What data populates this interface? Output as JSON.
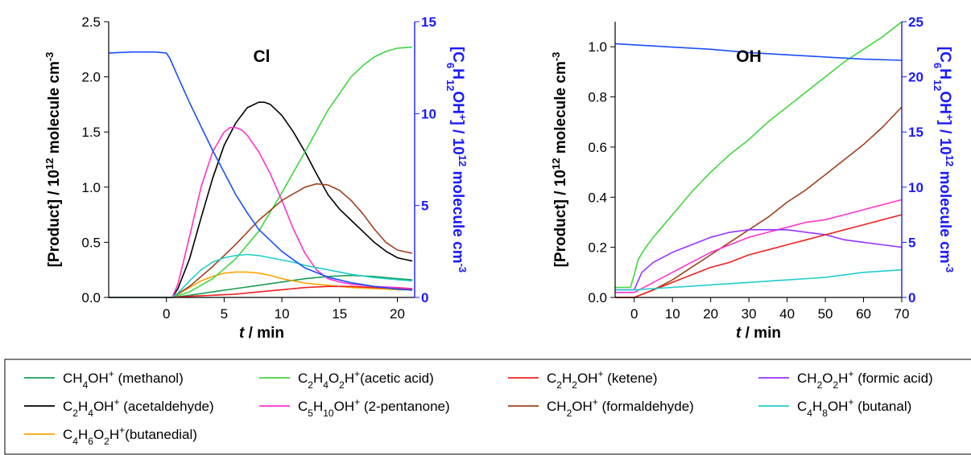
{
  "chart_data": [
    {
      "type": "line",
      "title": "Cl",
      "xlabel": "t / min",
      "ylabel": "[Product] / 10^12 molecule cm^-3",
      "y2label": "[C6H12OH+] / 10^12 molecule cm^-3",
      "xlim": [
        -5,
        21.5
      ],
      "ylim": [
        0,
        2.5
      ],
      "y2lim": [
        0,
        15
      ],
      "x_ticks": [
        "0",
        "5",
        "10",
        "15",
        "20"
      ],
      "y_ticks": [
        "0.0",
        "0.5",
        "1.0",
        "1.5",
        "2.0",
        "2.5"
      ],
      "y2_ticks": [
        "0",
        "5",
        "10",
        "15"
      ],
      "grid": false,
      "series": [
        {
          "key": "methanol",
          "axis": "left",
          "x": [
            -5,
            0,
            0.5,
            2,
            4,
            6,
            8,
            10,
            12,
            14,
            16,
            18,
            20,
            21.3
          ],
          "y": [
            0,
            0,
            0,
            0.02,
            0.05,
            0.08,
            0.11,
            0.14,
            0.17,
            0.19,
            0.2,
            0.19,
            0.17,
            0.16
          ]
        },
        {
          "key": "acetaldehyde",
          "axis": "left",
          "x": [
            -5,
            0,
            0.5,
            1,
            2,
            3,
            4,
            5,
            6,
            7,
            8,
            8.5,
            9,
            10,
            11,
            12,
            13,
            14,
            15,
            16,
            17,
            18,
            19,
            20,
            21.3
          ],
          "y": [
            0,
            0,
            0,
            0.08,
            0.35,
            0.72,
            1.08,
            1.38,
            1.58,
            1.72,
            1.77,
            1.77,
            1.75,
            1.65,
            1.5,
            1.32,
            1.12,
            0.93,
            0.8,
            0.7,
            0.6,
            0.5,
            0.42,
            0.36,
            0.33
          ]
        },
        {
          "key": "butanedial",
          "axis": "left",
          "x": [
            -5,
            0,
            0.5,
            1,
            2,
            3,
            4,
            5,
            6,
            7,
            8,
            9,
            10,
            11,
            12,
            14,
            16,
            18,
            20,
            21.3
          ],
          "y": [
            0,
            0,
            0,
            0.03,
            0.09,
            0.15,
            0.19,
            0.22,
            0.23,
            0.23,
            0.22,
            0.2,
            0.17,
            0.15,
            0.13,
            0.11,
            0.09,
            0.08,
            0.07,
            0.07
          ]
        },
        {
          "key": "acetic_acid",
          "axis": "left",
          "x": [
            -5,
            0,
            0.5,
            2,
            4,
            6,
            8,
            10,
            12,
            14,
            16,
            17,
            18,
            19,
            20,
            21.3
          ],
          "y": [
            0,
            0,
            0,
            0.05,
            0.17,
            0.35,
            0.6,
            0.95,
            1.32,
            1.7,
            2.0,
            2.1,
            2.18,
            2.23,
            2.26,
            2.27
          ]
        },
        {
          "key": "2_pentanone",
          "axis": "left",
          "x": [
            -5,
            0,
            0.5,
            1,
            2,
            3,
            4,
            5,
            5.5,
            6,
            6.5,
            7,
            8,
            9,
            10,
            11,
            12,
            13,
            14,
            15,
            16,
            18,
            20,
            21.3
          ],
          "y": [
            0,
            0,
            0,
            0.12,
            0.55,
            1.0,
            1.32,
            1.5,
            1.54,
            1.54,
            1.52,
            1.47,
            1.32,
            1.12,
            0.88,
            0.62,
            0.4,
            0.25,
            0.17,
            0.14,
            0.12,
            0.1,
            0.09,
            0.08
          ]
        },
        {
          "key": "ketene",
          "axis": "left",
          "x": [
            -5,
            0,
            0.5,
            2,
            4,
            6,
            8,
            10,
            12,
            14,
            16,
            18,
            20,
            21.3
          ],
          "y": [
            0,
            0,
            0,
            0.01,
            0.02,
            0.03,
            0.05,
            0.07,
            0.09,
            0.1,
            0.1,
            0.09,
            0.08,
            0.07
          ]
        },
        {
          "key": "formaldehyde",
          "axis": "left",
          "x": [
            -5,
            0,
            0.5,
            2,
            4,
            6,
            8,
            10,
            12,
            13,
            14,
            15,
            16,
            17,
            18,
            19,
            20,
            21.3
          ],
          "y": [
            0,
            0,
            0,
            0.1,
            0.28,
            0.48,
            0.7,
            0.88,
            1.0,
            1.03,
            1.02,
            0.97,
            0.88,
            0.76,
            0.62,
            0.5,
            0.43,
            0.4
          ]
        },
        {
          "key": "butanal",
          "axis": "left",
          "x": [
            -5,
            0,
            0.5,
            1,
            2,
            3,
            4,
            5,
            6,
            7,
            8,
            9,
            10,
            11,
            12,
            14,
            16,
            18,
            20,
            21.3
          ],
          "y": [
            0,
            0,
            0,
            0.04,
            0.15,
            0.25,
            0.32,
            0.36,
            0.38,
            0.39,
            0.38,
            0.36,
            0.34,
            0.32,
            0.29,
            0.25,
            0.21,
            0.18,
            0.16,
            0.15
          ]
        },
        {
          "key": "hexanol_ion",
          "axis": "right",
          "x": [
            -5,
            -3,
            -1,
            0,
            0.3,
            1,
            2,
            3,
            4,
            5,
            6,
            7,
            8,
            10,
            12,
            14,
            16,
            18,
            20,
            21.3
          ],
          "y": [
            13.3,
            13.35,
            13.35,
            13.3,
            13.0,
            12.0,
            10.6,
            9.3,
            8.0,
            6.8,
            5.6,
            4.6,
            3.7,
            2.5,
            1.6,
            1.1,
            0.8,
            0.6,
            0.45,
            0.4
          ]
        }
      ]
    },
    {
      "type": "line",
      "title": "OH",
      "xlabel": "t / min",
      "ylabel": "[Product] / 10^12 molecule cm^-3",
      "y2label": "[C6H12OH+] / 10^12 molecule cm^-3",
      "xlim": [
        -5,
        70
      ],
      "ylim": [
        0,
        1.1
      ],
      "y2lim": [
        0,
        25
      ],
      "x_ticks": [
        "0",
        "10",
        "20",
        "30",
        "40",
        "50",
        "60",
        "70"
      ],
      "y_ticks": [
        "0.0",
        "0.2",
        "0.4",
        "0.6",
        "0.8",
        "1.0"
      ],
      "y2_ticks": [
        "0",
        "5",
        "10",
        "15",
        "20",
        "25"
      ],
      "grid": false,
      "series": [
        {
          "key": "acetic_acid",
          "axis": "left",
          "x": [
            -5,
            -1,
            0,
            1,
            3,
            5,
            10,
            15,
            20,
            25,
            30,
            35,
            40,
            45,
            50,
            55,
            60,
            65,
            70
          ],
          "y": [
            0.04,
            0.04,
            0.09,
            0.15,
            0.2,
            0.24,
            0.33,
            0.42,
            0.5,
            0.57,
            0.63,
            0.7,
            0.76,
            0.82,
            0.88,
            0.94,
            0.99,
            1.04,
            1.1
          ]
        },
        {
          "key": "formaldehyde",
          "axis": "left",
          "x": [
            -5,
            0,
            5,
            10,
            15,
            20,
            25,
            30,
            35,
            40,
            45,
            50,
            55,
            60,
            65,
            70
          ],
          "y": [
            0.0,
            0.0,
            0.03,
            0.07,
            0.12,
            0.17,
            0.22,
            0.27,
            0.32,
            0.38,
            0.43,
            0.49,
            0.55,
            0.61,
            0.68,
            0.76
          ]
        },
        {
          "key": "2_pentanone",
          "axis": "left",
          "x": [
            -5,
            0,
            5,
            10,
            15,
            20,
            25,
            30,
            35,
            40,
            45,
            50,
            55,
            60,
            65,
            70
          ],
          "y": [
            0.02,
            0.02,
            0.06,
            0.1,
            0.14,
            0.18,
            0.21,
            0.24,
            0.26,
            0.28,
            0.3,
            0.31,
            0.33,
            0.35,
            0.37,
            0.39
          ]
        },
        {
          "key": "formic_acid",
          "axis": "left",
          "x": [
            -5,
            0,
            2,
            5,
            10,
            15,
            20,
            25,
            30,
            35,
            40,
            45,
            50,
            55,
            60,
            65,
            70
          ],
          "y": [
            0.03,
            0.03,
            0.1,
            0.14,
            0.18,
            0.21,
            0.24,
            0.26,
            0.27,
            0.27,
            0.27,
            0.26,
            0.25,
            0.23,
            0.22,
            0.21,
            0.2
          ]
        },
        {
          "key": "ketene",
          "axis": "left",
          "x": [
            -5,
            0,
            5,
            10,
            15,
            20,
            25,
            30,
            35,
            40,
            45,
            50,
            55,
            60,
            65,
            70
          ],
          "y": [
            0.0,
            0.0,
            0.03,
            0.06,
            0.09,
            0.12,
            0.14,
            0.17,
            0.19,
            0.21,
            0.23,
            0.25,
            0.27,
            0.29,
            0.31,
            0.33
          ]
        },
        {
          "key": "butanal",
          "axis": "left",
          "x": [
            -5,
            0,
            10,
            20,
            30,
            40,
            50,
            60,
            70
          ],
          "y": [
            0.03,
            0.03,
            0.04,
            0.05,
            0.06,
            0.07,
            0.08,
            0.1,
            0.11
          ]
        },
        {
          "key": "hexanol_ion",
          "axis": "right",
          "x": [
            -5,
            0,
            10,
            20,
            30,
            40,
            50,
            60,
            70
          ],
          "y": [
            23.0,
            22.9,
            22.7,
            22.5,
            22.2,
            22.0,
            21.8,
            21.6,
            21.5
          ]
        }
      ]
    }
  ],
  "colors": {
    "methanol": "#1a9e55",
    "acetaldehyde": "#000000",
    "butanedial": "#ffa500",
    "acetic_acid": "#3fd63f",
    "2_pentanone": "#ff33cc",
    "ketene": "#ee2222",
    "formaldehyde": "#a0401e",
    "formic_acid": "#9933ff",
    "butanal": "#22cccc",
    "hexanol_ion": "#1a4dff",
    "right_axis": "#1a1aff"
  },
  "legend": [
    {
      "key": "methanol",
      "parts": [
        [
          "CH",
          ""
        ],
        [
          "4",
          "sub"
        ],
        [
          "OH",
          ""
        ],
        [
          "+",
          "sup"
        ],
        [
          " (methanol)",
          ""
        ]
      ]
    },
    {
      "key": "acetic_acid",
      "parts": [
        [
          "C",
          ""
        ],
        [
          "2",
          "sub"
        ],
        [
          "H",
          ""
        ],
        [
          "4",
          "sub"
        ],
        [
          "O",
          ""
        ],
        [
          "2",
          "sub"
        ],
        [
          "H",
          ""
        ],
        [
          "+",
          "sup"
        ],
        [
          "(acetic acid)",
          ""
        ]
      ]
    },
    {
      "key": "ketene",
      "parts": [
        [
          "C",
          ""
        ],
        [
          "2",
          "sub"
        ],
        [
          "H",
          ""
        ],
        [
          "2",
          "sub"
        ],
        [
          "OH",
          ""
        ],
        [
          "+",
          "sup"
        ],
        [
          " (ketene)",
          ""
        ]
      ]
    },
    {
      "key": "formic_acid",
      "parts": [
        [
          "CH",
          ""
        ],
        [
          "2",
          "sub"
        ],
        [
          "O",
          ""
        ],
        [
          "2",
          "sub"
        ],
        [
          "H",
          ""
        ],
        [
          "+",
          "sup"
        ],
        [
          " (formic acid)",
          ""
        ]
      ]
    },
    {
      "key": "acetaldehyde",
      "parts": [
        [
          "C",
          ""
        ],
        [
          "2",
          "sub"
        ],
        [
          "H",
          ""
        ],
        [
          "4",
          "sub"
        ],
        [
          "OH",
          ""
        ],
        [
          "+",
          "sup"
        ],
        [
          " (acetaldehyde)",
          ""
        ]
      ]
    },
    {
      "key": "2_pentanone",
      "parts": [
        [
          "C",
          ""
        ],
        [
          "5",
          "sub"
        ],
        [
          "H",
          ""
        ],
        [
          "10",
          "sub"
        ],
        [
          "OH",
          ""
        ],
        [
          "+",
          "sup"
        ],
        [
          " (2-pentanone)",
          ""
        ]
      ]
    },
    {
      "key": "formaldehyde",
      "parts": [
        [
          "CH",
          ""
        ],
        [
          "2",
          "sub"
        ],
        [
          "OH",
          ""
        ],
        [
          "+",
          "sup"
        ],
        [
          "  (formaldehyde)",
          ""
        ]
      ]
    },
    {
      "key": "butanal",
      "parts": [
        [
          "C",
          ""
        ],
        [
          "4",
          "sub"
        ],
        [
          "H",
          ""
        ],
        [
          "8",
          "sub"
        ],
        [
          "OH",
          ""
        ],
        [
          "+",
          "sup"
        ],
        [
          " (butanal)",
          ""
        ]
      ]
    },
    {
      "key": "butanedial",
      "parts": [
        [
          "C",
          ""
        ],
        [
          "4",
          "sub"
        ],
        [
          "H",
          ""
        ],
        [
          "6",
          "sub"
        ],
        [
          "O",
          ""
        ],
        [
          "2",
          "sub"
        ],
        [
          "H",
          ""
        ],
        [
          "+",
          "sup"
        ],
        [
          "(butanedial)",
          ""
        ]
      ]
    }
  ]
}
